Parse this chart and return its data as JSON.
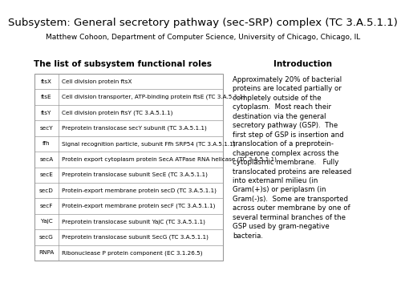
{
  "title": "Subsystem: General secretory pathway (sec-SRP) complex (TC 3.A.5.1.1)",
  "subtitle": "Matthew Cohoon, Department of Computer Science, University of Chicago, Chicago, IL",
  "left_heading": "The list of subsystem functional roles",
  "right_heading": "Introduction",
  "table_rows": [
    [
      "ftsX",
      "Cell division protein ftsX"
    ],
    [
      "ftsE",
      "Cell division transporter, ATP-binding protein ftsE (TC 3.A.5.1.1)"
    ],
    [
      "ftsY",
      "Cell division protein ftsY (TC 3.A.5.1.1)"
    ],
    [
      "secY",
      "Preprotein translocase secY subunit (TC 3.A.5.1.1)"
    ],
    [
      "ffh",
      "Signal recognition particle, subunit Ffh SRP54 (TC 3.A.5.1.1)"
    ],
    [
      "secA",
      "Protein export cytoplasm protein SecA ATPase RNA helicase (TC 3.A.5.1.1)"
    ],
    [
      "secE",
      "Preprotein translocase subunit SecE (TC 3.A.5.1.1)"
    ],
    [
      "secD",
      "Protein-export membrane protein secD (TC 3.A.5.1.1)"
    ],
    [
      "secF",
      "Protein-export membrane protein secF (TC 3.A.5.1.1)"
    ],
    [
      "YajC",
      "Preprotein translocase subunit YajC (TC 3.A.5.1.1)"
    ],
    [
      "secG",
      "Preprotein translocase subunit SecG (TC 3.A.5.1.1)"
    ],
    [
      "RNPA",
      "Ribonuclease P protein component (EC 3.1.26.5)"
    ]
  ],
  "intro_text": "Approximately 20% of bacterial\nproteins are located partially or\ncompletely outside of the\ncytoplasm.  Most reach their\ndestination via the general\nsecretory pathway (GSP).  The\nfirst step of GSP is insertion and\ntranslocation of a preprotein-\nchaperone complex across the\ncytoplasmic membrane.   Fully\ntranslocated proteins are released\ninto externaml milieu (in\nGram(+)s) or periplasm (in\nGram(-)s).  Some are transported\nacross outer membrane by one of\nseveral terminal branches of the\nGSP used by gram-negative\nbacteria.",
  "title_fontsize": 9.5,
  "subtitle_fontsize": 6.5,
  "heading_fontsize": 7.5,
  "table_fontsize": 5.2,
  "intro_fontsize": 6.2,
  "table_border_color": "#999999"
}
